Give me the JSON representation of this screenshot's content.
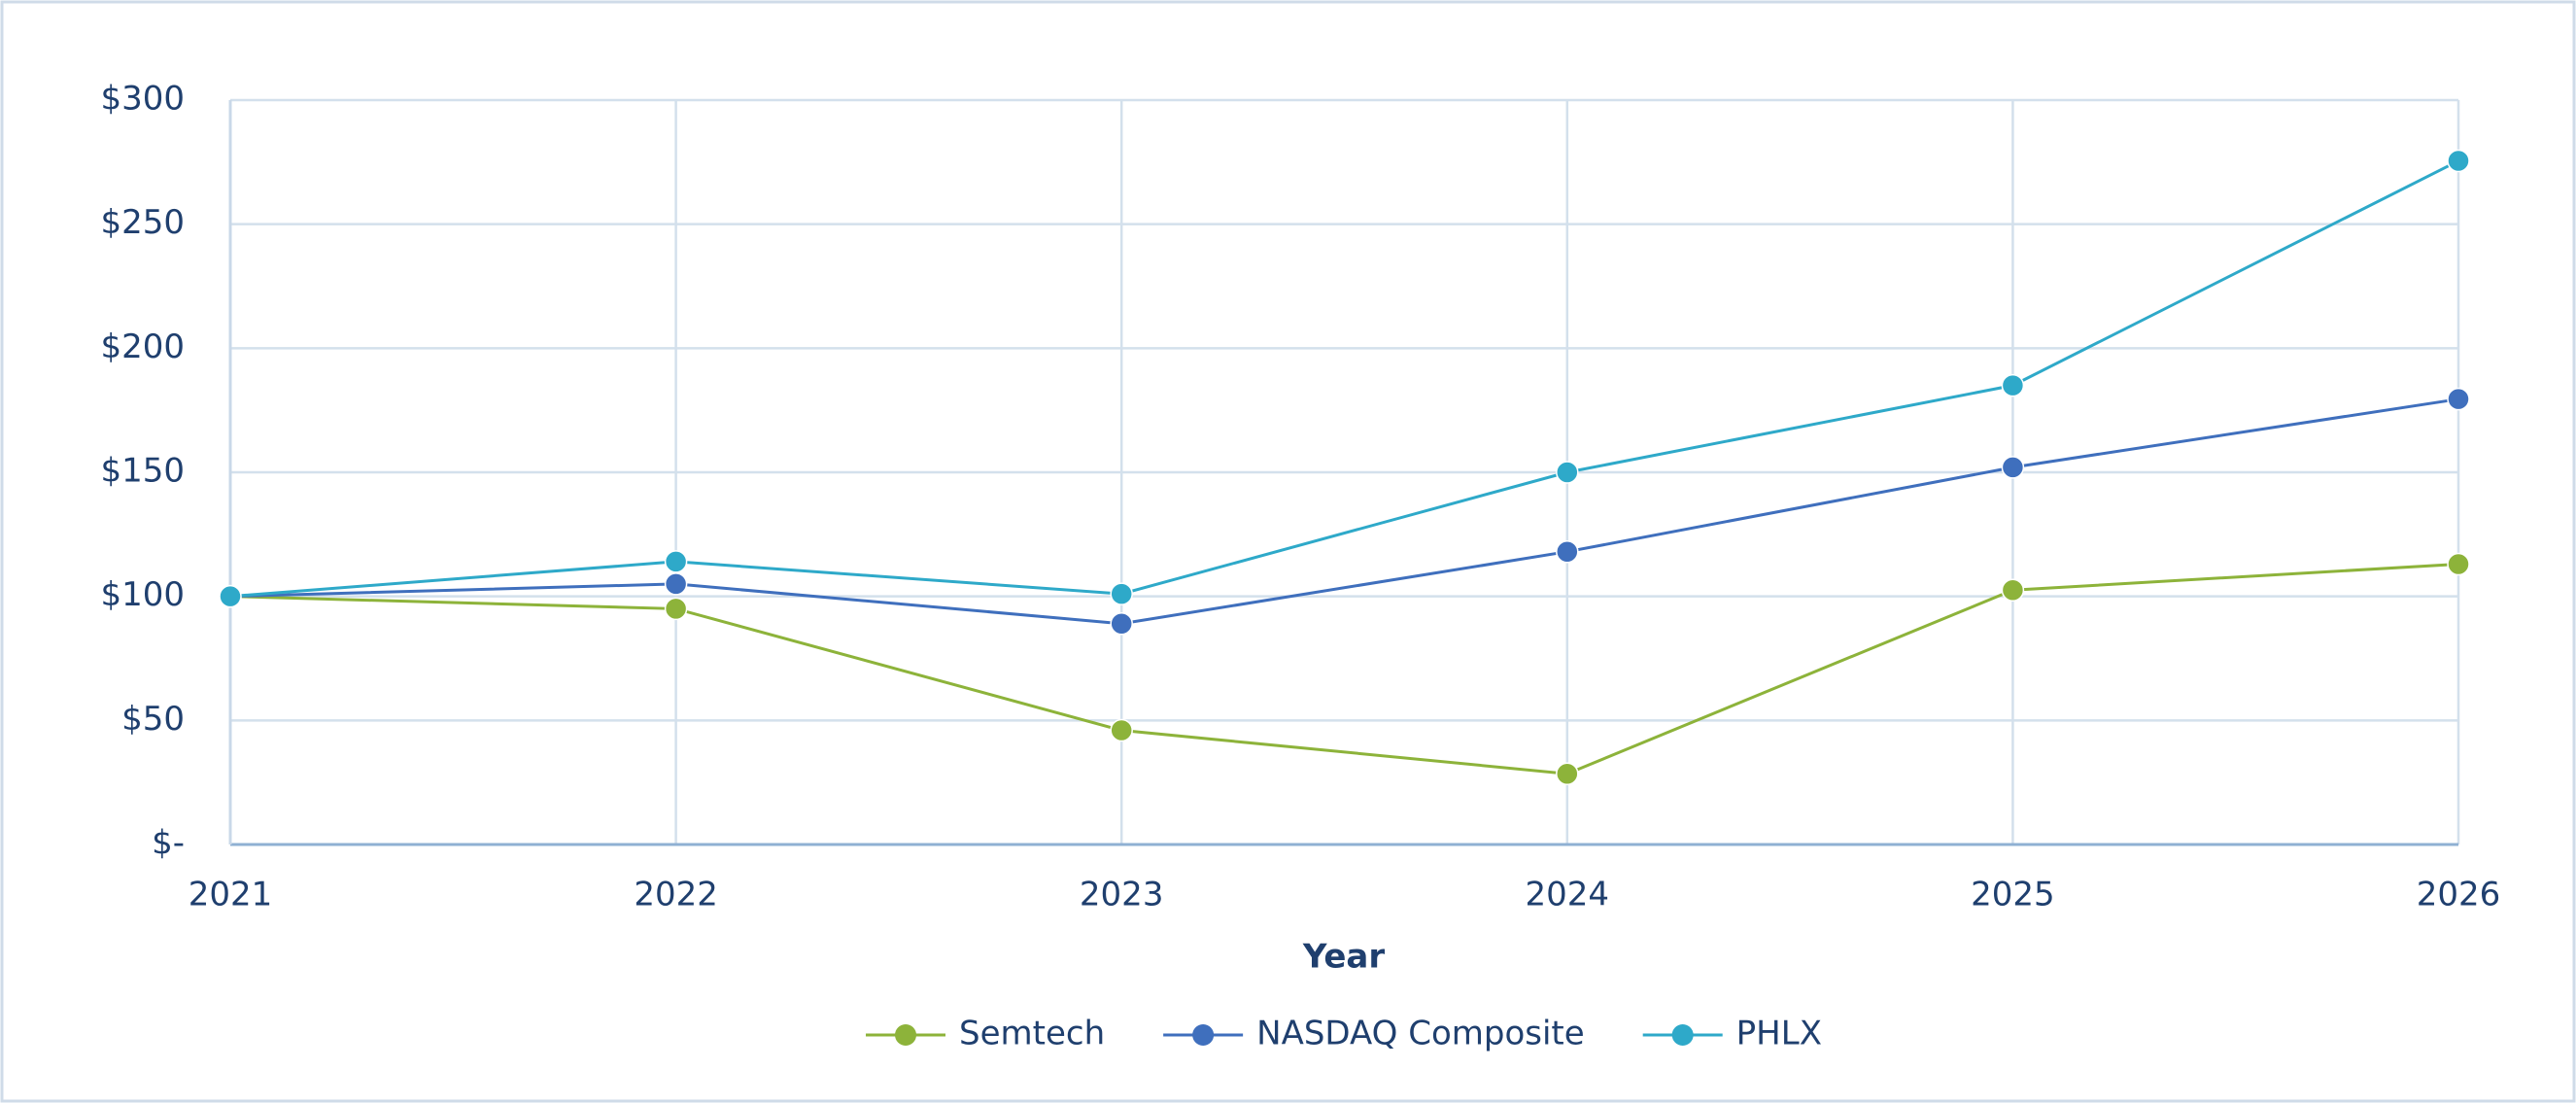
{
  "chart_data": {
    "type": "line",
    "x_label": "Year",
    "x": [
      2021,
      2022,
      2023,
      2024,
      2025,
      2026
    ],
    "xlim": [
      2021,
      2026
    ],
    "xticks": [
      2021,
      2022,
      2023,
      2024,
      2025,
      2026
    ],
    "ylim": [
      0,
      300
    ],
    "yticks": [
      {
        "value": 0,
        "label": "$-"
      },
      {
        "value": 50,
        "label": "$50"
      },
      {
        "value": 100,
        "label": "$100"
      },
      {
        "value": 150,
        "label": "$150"
      },
      {
        "value": 200,
        "label": "$200"
      },
      {
        "value": 250,
        "label": "$250"
      },
      {
        "value": 300,
        "label": "$300"
      }
    ],
    "grid": true,
    "legend": "bottom",
    "series": [
      {
        "name": "Semtech",
        "color": "#8db33a",
        "values": [
          100,
          95,
          46,
          28.5,
          102.5,
          113
        ]
      },
      {
        "name": "NASDAQ Composite",
        "color": "#3f6fbd",
        "values": [
          100,
          105,
          89,
          118,
          152,
          179.5
        ]
      },
      {
        "name": "PHLX",
        "color": "#2ea9c9",
        "values": [
          100,
          114,
          101,
          150,
          185,
          275.5
        ]
      }
    ]
  }
}
